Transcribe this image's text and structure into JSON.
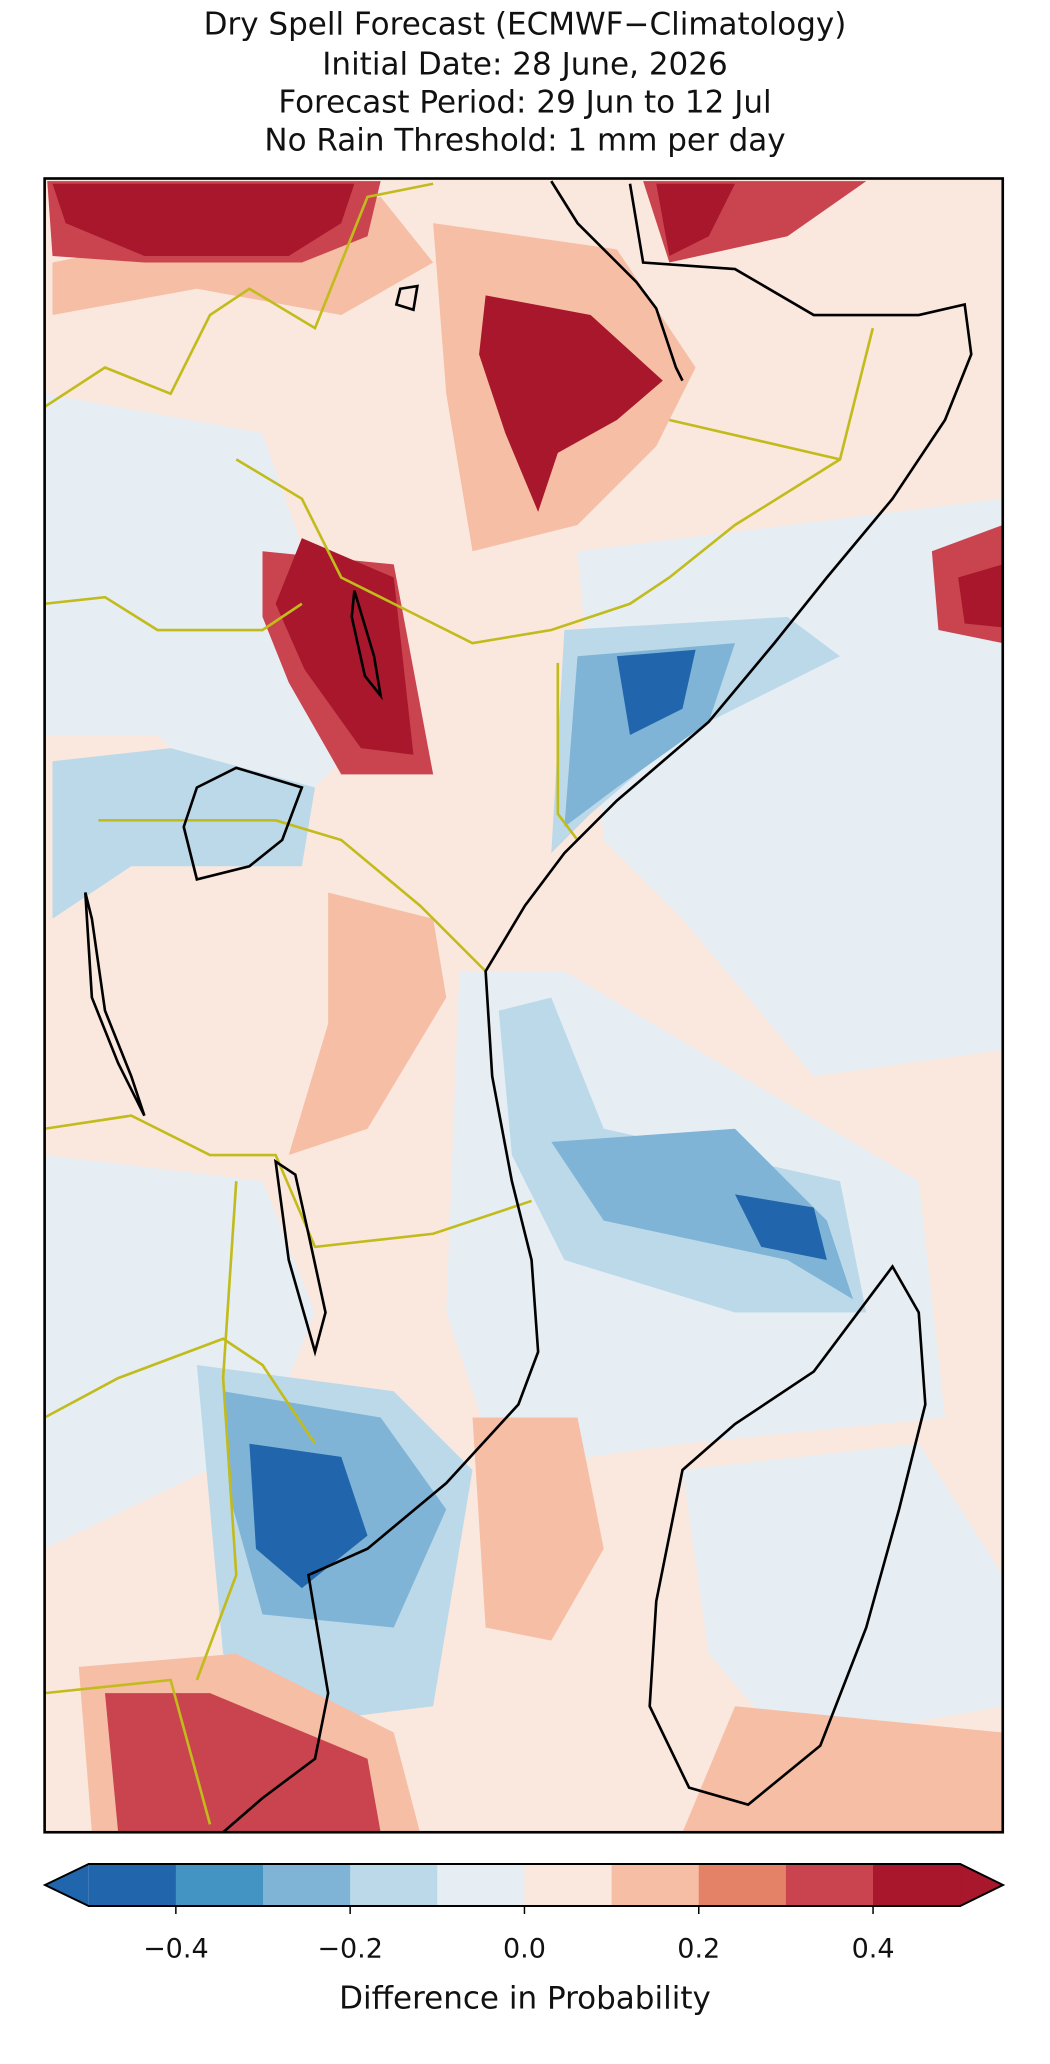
{
  "title": [
    "Dry Spell Forecast (ECMWF−Climatology)",
    "Initial Date: 28 June, 2026",
    "Forecast Period: 29 Jun to 12 Jul",
    "No Rain Threshold: 1 mm per day"
  ],
  "colorbar": {
    "label": "Difference in Probability",
    "lim": [
      -0.5,
      0.5
    ],
    "boundaries": [
      -0.5,
      -0.4,
      -0.3,
      -0.2,
      -0.1,
      0.0,
      0.1,
      0.2,
      0.3,
      0.4,
      0.5
    ],
    "colors": [
      "#2166ac",
      "#4393c3",
      "#7fb4d6",
      "#bcd9ea",
      "#e6eef4",
      "#fae8df",
      "#f6bea4",
      "#e48268",
      "#c9444e",
      "#a8172c"
    ],
    "ticks": [
      {
        "value": -0.4,
        "label": "−0.4"
      },
      {
        "value": -0.2,
        "label": "−0.2"
      },
      {
        "value": 0,
        "label": "0.0"
      },
      0.2,
      0.4
    ]
  }
}
